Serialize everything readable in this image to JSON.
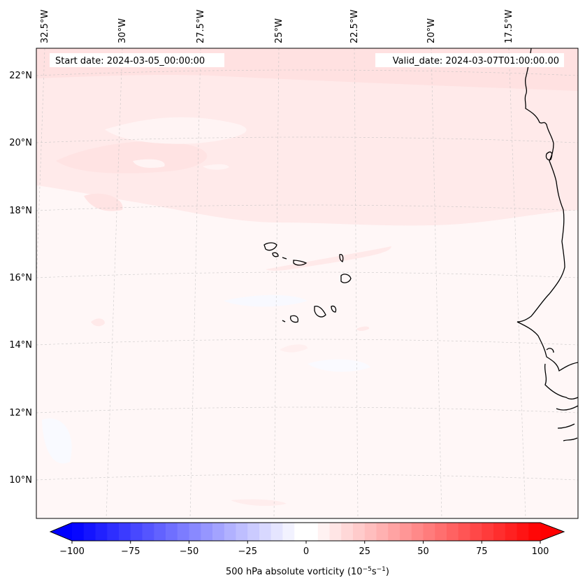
{
  "header": {
    "start_date": "Start date: 2024-03-05_00:00:00",
    "valid_date": "Valid_date: 2024-03-07T01:00:00.00"
  },
  "map": {
    "lon_labels": [
      "32.5°W",
      "30°W",
      "27.5°W",
      "25°W",
      "22.5°W",
      "20°W",
      "17.5°W"
    ],
    "lat_labels": [
      "22°N",
      "20°N",
      "18°N",
      "16°N",
      "14°N",
      "12°N",
      "10°N"
    ]
  },
  "colorbar": {
    "label_prefix": "500 hPa absolute vorticity (10",
    "label_exp1": "−5",
    "label_mid": "s",
    "label_exp2": "−1",
    "label_suffix": ")",
    "min": -100,
    "max": 100,
    "ticks": [
      {
        "value": -100,
        "label": "−100"
      },
      {
        "value": -75,
        "label": "−75"
      },
      {
        "value": -50,
        "label": "−50"
      },
      {
        "value": -25,
        "label": "−25"
      },
      {
        "value": 0,
        "label": "0"
      },
      {
        "value": 25,
        "label": "25"
      },
      {
        "value": 50,
        "label": "50"
      },
      {
        "value": 75,
        "label": "75"
      },
      {
        "value": 100,
        "label": "100"
      }
    ],
    "colors": {
      "neg": "#0000ff",
      "mid": "#ffffff",
      "pos": "#ff0000"
    }
  }
}
